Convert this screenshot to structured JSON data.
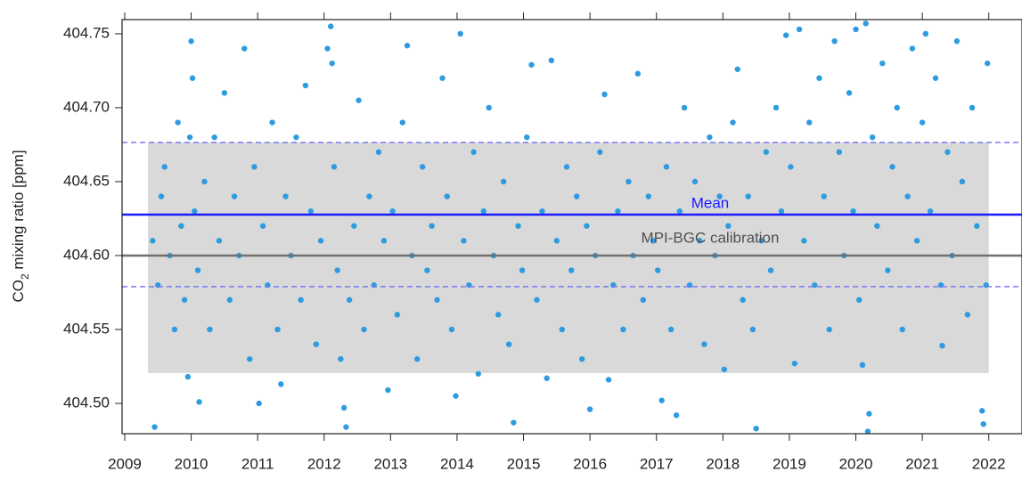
{
  "chart_data": {
    "type": "scatter",
    "y_label_parts": [
      "CO",
      "2",
      " mixing ratio [ppm]"
    ],
    "xlim": [
      2008.96,
      2022.5
    ],
    "ylim": [
      404.4795,
      404.7596
    ],
    "xticks": [
      2009,
      2010,
      2011,
      2012,
      2013,
      2014,
      2015,
      2016,
      2017,
      2018,
      2019,
      2020,
      2021,
      2022
    ],
    "yticks": [
      {
        "value": 404.5,
        "label": "404.50"
      },
      404.55,
      {
        "value": 404.6,
        "label": "404.60"
      },
      404.65,
      {
        "value": 404.7,
        "label": "404.70"
      },
      404.75
    ],
    "band": {
      "x": [
        2009.35,
        2022.0
      ],
      "y": [
        404.5205,
        404.6765
      ],
      "color": "#d9d9d9"
    },
    "reference_lines": [
      {
        "value": 404.6765,
        "color": "#7b7bf0",
        "style": "dashed"
      },
      {
        "value": 404.579,
        "color": "#7b7bf0",
        "style": "dashed"
      },
      {
        "value": 404.6,
        "color": "#707070",
        "style": "solid",
        "label": "MPI-BGC calibration",
        "label_color": "#505050"
      },
      {
        "value": 404.6277,
        "color": "#1a1aff",
        "style": "solid",
        "label": "Mean",
        "label_color": "#1a1aff"
      }
    ],
    "series": [
      {
        "color": "#2e9be0",
        "x": [
          2009.42,
          2009.45,
          2009.5,
          2009.55,
          2009.6,
          2009.68,
          2009.75,
          2009.8,
          2009.85,
          2009.9,
          2009.95,
          2009.98,
          2010.0,
          2010.02,
          2010.05,
          2010.1,
          2010.12,
          2010.2,
          2010.28,
          2010.35,
          2010.42,
          2010.5,
          2010.58,
          2010.65,
          2010.72,
          2010.8,
          2010.88,
          2010.95,
          2011.02,
          2011.08,
          2011.15,
          2011.22,
          2011.3,
          2011.35,
          2011.42,
          2011.5,
          2011.58,
          2011.65,
          2011.72,
          2011.8,
          2011.88,
          2011.95,
          2012.05,
          2012.1,
          2012.12,
          2012.15,
          2012.2,
          2012.25,
          2012.3,
          2012.33,
          2012.38,
          2012.45,
          2012.52,
          2012.6,
          2012.68,
          2012.75,
          2012.82,
          2012.9,
          2012.96,
          2013.03,
          2013.1,
          2013.18,
          2013.25,
          2013.32,
          2013.4,
          2013.48,
          2013.55,
          2013.62,
          2013.7,
          2013.78,
          2013.85,
          2013.92,
          2013.98,
          2014.05,
          2014.1,
          2014.18,
          2014.25,
          2014.32,
          2014.4,
          2014.48,
          2014.55,
          2014.62,
          2014.7,
          2014.78,
          2014.85,
          2014.92,
          2014.98,
          2015.05,
          2015.12,
          2015.2,
          2015.28,
          2015.35,
          2015.42,
          2015.5,
          2015.58,
          2015.65,
          2015.72,
          2015.8,
          2015.88,
          2015.95,
          2016.0,
          2016.08,
          2016.15,
          2016.22,
          2016.28,
          2016.35,
          2016.42,
          2016.5,
          2016.58,
          2016.65,
          2016.72,
          2016.8,
          2016.88,
          2016.95,
          2017.02,
          2017.08,
          2017.15,
          2017.22,
          2017.3,
          2017.35,
          2017.42,
          2017.5,
          2017.58,
          2017.65,
          2017.72,
          2017.8,
          2017.88,
          2017.95,
          2018.02,
          2018.08,
          2018.15,
          2018.22,
          2018.3,
          2018.38,
          2018.45,
          2018.5,
          2018.58,
          2018.65,
          2018.72,
          2018.8,
          2018.88,
          2018.95,
          2019.02,
          2019.08,
          2019.15,
          2019.22,
          2019.3,
          2019.38,
          2019.45,
          2019.52,
          2019.6,
          2019.68,
          2019.75,
          2019.82,
          2019.9,
          2019.96,
          2020.0,
          2020.05,
          2020.1,
          2020.15,
          2020.2,
          2020.18,
          2020.25,
          2020.32,
          2020.4,
          2020.48,
          2020.55,
          2020.62,
          2020.7,
          2020.78,
          2020.85,
          2020.92,
          2021.0,
          2021.05,
          2021.12,
          2021.2,
          2021.28,
          2021.3,
          2021.38,
          2021.45,
          2021.52,
          2021.6,
          2021.68,
          2021.75,
          2021.82,
          2021.9,
          2021.92,
          2021.96,
          2021.98
        ],
        "values": [
          404.61,
          404.484,
          404.58,
          404.64,
          404.66,
          404.6,
          404.55,
          404.69,
          404.62,
          404.57,
          404.518,
          404.68,
          404.745,
          404.72,
          404.63,
          404.59,
          404.501,
          404.65,
          404.55,
          404.68,
          404.61,
          404.71,
          404.57,
          404.64,
          404.6,
          404.74,
          404.53,
          404.66,
          404.5,
          404.62,
          404.58,
          404.69,
          404.55,
          404.513,
          404.64,
          404.6,
          404.68,
          404.57,
          404.715,
          404.63,
          404.54,
          404.61,
          404.74,
          404.755,
          404.73,
          404.66,
          404.59,
          404.53,
          404.497,
          404.484,
          404.57,
          404.62,
          404.705,
          404.55,
          404.64,
          404.58,
          404.67,
          404.61,
          404.509,
          404.63,
          404.56,
          404.69,
          404.742,
          404.6,
          404.53,
          404.66,
          404.59,
          404.62,
          404.57,
          404.72,
          404.64,
          404.55,
          404.505,
          404.75,
          404.61,
          404.58,
          404.67,
          404.52,
          404.63,
          404.7,
          404.6,
          404.56,
          404.65,
          404.54,
          404.487,
          404.62,
          404.59,
          404.68,
          404.729,
          404.57,
          404.63,
          404.517,
          404.732,
          404.61,
          404.55,
          404.66,
          404.59,
          404.64,
          404.53,
          404.62,
          404.496,
          404.6,
          404.67,
          404.709,
          404.516,
          404.58,
          404.63,
          404.55,
          404.65,
          404.6,
          404.723,
          404.57,
          404.64,
          404.61,
          404.59,
          404.502,
          404.66,
          404.55,
          404.492,
          404.63,
          404.7,
          404.58,
          404.65,
          404.61,
          404.54,
          404.68,
          404.6,
          404.64,
          404.523,
          404.62,
          404.69,
          404.726,
          404.57,
          404.64,
          404.55,
          404.483,
          404.61,
          404.67,
          404.59,
          404.7,
          404.63,
          404.749,
          404.66,
          404.527,
          404.753,
          404.61,
          404.69,
          404.58,
          404.72,
          404.64,
          404.55,
          404.745,
          404.67,
          404.6,
          404.71,
          404.63,
          404.753,
          404.57,
          404.526,
          404.757,
          404.493,
          404.481,
          404.68,
          404.62,
          404.73,
          404.59,
          404.66,
          404.7,
          404.55,
          404.64,
          404.74,
          404.61,
          404.69,
          404.75,
          404.63,
          404.72,
          404.58,
          404.539,
          404.67,
          404.6,
          404.745,
          404.65,
          404.56,
          404.7,
          404.62,
          404.495,
          404.486,
          404.58,
          404.73
        ]
      }
    ]
  }
}
